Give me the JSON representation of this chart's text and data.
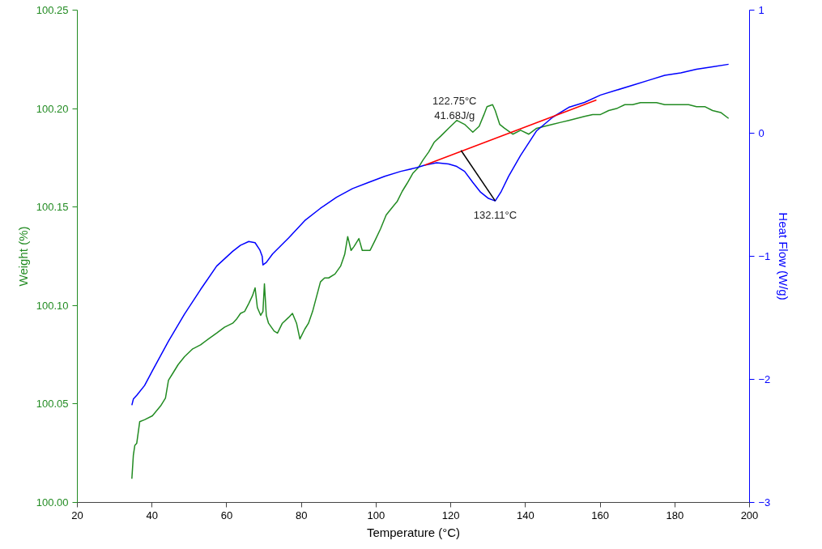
{
  "chart_data": {
    "type": "line",
    "xlabel": "Temperature (°C)",
    "ylabel": "Weight (%)",
    "y2label": "Heat Flow (W/g)",
    "xlim": [
      20,
      200
    ],
    "xticks": [
      20,
      40,
      60,
      80,
      100,
      120,
      140,
      160,
      180,
      200
    ],
    "ylim": [
      100.0,
      100.25
    ],
    "yticks": [
      {
        "value": 100.0,
        "label": "100.00"
      },
      {
        "value": 100.05,
        "label": "100.05"
      },
      {
        "value": 100.1,
        "label": "100.10"
      },
      {
        "value": 100.15,
        "label": "100.15"
      },
      {
        "value": 100.2,
        "label": "100.20"
      },
      {
        "value": 100.25,
        "label": "100.25"
      }
    ],
    "y2lim": [
      -3,
      1
    ],
    "y2ticks": [
      -3,
      -2,
      -1,
      0,
      1
    ],
    "grid": false,
    "line_style": "solid",
    "marker": "none",
    "series": [
      {
        "color": "#228b22",
        "x": [
          34.6,
          35.0,
          35.4,
          35.9,
          36.7,
          38.0,
          40.1,
          42.3,
          43.6,
          44.4,
          45.7,
          47.0,
          48.7,
          50.9,
          53.0,
          55.1,
          57.3,
          59.4,
          61.6,
          62.6,
          63.7,
          64.8,
          65.9,
          66.9,
          67.6,
          68.2,
          69.1,
          69.7,
          70.1,
          70.6,
          71.2,
          72.7,
          73.6,
          74.9,
          76.6,
          77.6,
          78.7,
          79.6,
          80.9,
          81.9,
          83.0,
          85.1,
          86.2,
          87.3,
          89.0,
          90.5,
          91.6,
          92.4,
          93.3,
          94.1,
          95.4,
          96.3,
          97.6,
          98.4,
          99.7,
          101.2,
          102.7,
          104.4,
          105.7,
          107.0,
          108.3,
          109.8,
          111.3,
          112.6,
          114.1,
          115.6,
          117.3,
          119.4,
          121.6,
          123.7,
          125.9,
          127.6,
          128.9,
          129.7,
          131.2,
          131.9,
          133.1,
          134.4,
          136.6,
          138.7,
          140.9,
          143.0,
          145.1,
          147.3,
          149.4,
          151.6,
          153.7,
          155.8,
          158.0,
          160.1,
          162.3,
          164.4,
          166.6,
          168.7,
          170.8,
          173.0,
          175.1,
          177.3,
          179.4,
          181.6,
          183.7,
          185.8,
          188.0,
          190.1,
          192.3,
          194.4
        ],
        "values": [
          100.012,
          100.024,
          100.029,
          100.03,
          100.041,
          100.042,
          100.044,
          100.049,
          100.053,
          100.062,
          100.066,
          100.07,
          100.074,
          100.078,
          100.08,
          100.083,
          100.086,
          100.089,
          100.091,
          100.093,
          100.096,
          100.097,
          100.101,
          100.105,
          100.109,
          100.099,
          100.095,
          100.097,
          100.111,
          100.095,
          100.091,
          100.087,
          100.086,
          100.091,
          100.094,
          100.096,
          100.091,
          100.083,
          100.088,
          100.091,
          100.097,
          100.112,
          100.114,
          100.114,
          100.116,
          100.12,
          100.126,
          100.135,
          100.128,
          100.13,
          100.134,
          100.128,
          100.128,
          100.128,
          100.133,
          100.139,
          100.146,
          100.15,
          100.153,
          100.158,
          100.162,
          100.167,
          100.17,
          100.174,
          100.178,
          100.183,
          100.186,
          100.19,
          100.194,
          100.192,
          100.188,
          100.191,
          100.197,
          100.201,
          100.202,
          100.199,
          100.192,
          100.19,
          100.187,
          100.189,
          100.187,
          100.19,
          100.191,
          100.192,
          100.193,
          100.194,
          100.195,
          100.196,
          100.197,
          100.197,
          100.199,
          100.2,
          100.202,
          100.202,
          100.203,
          100.203,
          100.203,
          100.202,
          100.202,
          100.202,
          100.202,
          100.201,
          100.201,
          100.199,
          100.198,
          100.195
        ]
      },
      {
        "color": "#0000ff",
        "axis": "y2",
        "x": [
          34.6,
          35.0,
          35.9,
          38.0,
          40.1,
          44.4,
          48.7,
          53.0,
          57.3,
          61.6,
          63.7,
          65.9,
          67.6,
          68.9,
          69.5,
          69.7,
          70.6,
          72.3,
          76.6,
          80.9,
          85.1,
          89.4,
          93.7,
          98.0,
          102.3,
          106.6,
          110.9,
          113.0,
          116.2,
          119.4,
          121.6,
          123.7,
          125.9,
          128.0,
          130.1,
          131.9,
          133.4,
          135.5,
          138.7,
          143.0,
          147.3,
          151.6,
          155.8,
          160.1,
          164.4,
          168.7,
          173.0,
          177.3,
          181.6,
          185.8,
          190.1,
          194.4
        ],
        "values": [
          -2.21,
          -2.16,
          -2.13,
          -2.05,
          -1.93,
          -1.69,
          -1.47,
          -1.27,
          -1.08,
          -0.96,
          -0.91,
          -0.88,
          -0.89,
          -0.95,
          -1.0,
          -1.07,
          -1.05,
          -0.98,
          -0.85,
          -0.71,
          -0.61,
          -0.52,
          -0.45,
          -0.4,
          -0.35,
          -0.31,
          -0.28,
          -0.26,
          -0.24,
          -0.25,
          -0.27,
          -0.31,
          -0.4,
          -0.48,
          -0.53,
          -0.55,
          -0.48,
          -0.35,
          -0.18,
          0.02,
          0.13,
          0.21,
          0.25,
          0.31,
          0.35,
          0.39,
          0.43,
          0.47,
          0.49,
          0.52,
          0.54,
          0.56
        ]
      },
      {
        "color": "#ff0000",
        "axis": "y2",
        "x": [
          113.0,
          159.0
        ],
        "values": [
          -0.26,
          0.27
        ]
      },
      {
        "color": "#000000",
        "axis": "y2",
        "x": [
          122.75,
          131.9
        ],
        "values": [
          -0.14,
          -0.55
        ]
      }
    ],
    "annotations": [
      "122.75°C\n41.68J/g",
      "132.11°C"
    ]
  }
}
